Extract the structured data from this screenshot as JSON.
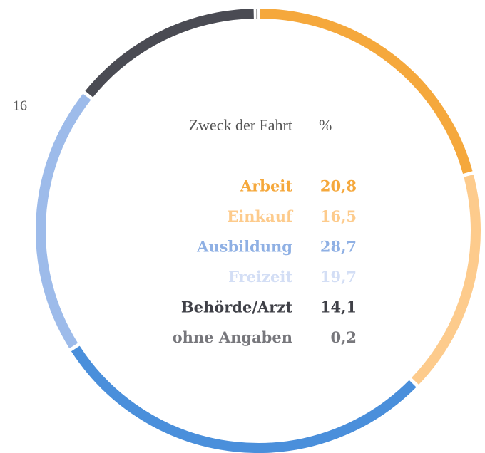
{
  "chart_data": {
    "type": "donut",
    "annotation": "16",
    "header": {
      "label": "Zweck der Fahrt",
      "unit": "%"
    },
    "categories": [
      "Arbeit",
      "Einkauf",
      "Ausbildung",
      "Freizeit",
      "Behörde/Arzt",
      "ohne Angaben"
    ],
    "values": [
      20.8,
      16.5,
      28.7,
      19.7,
      14.1,
      0.2
    ],
    "value_labels": [
      "20,8",
      "16,5",
      "28,7",
      "19,7",
      "14,1",
      "0,2"
    ],
    "colors": [
      "#f5a83c",
      "#fdcb8c",
      "#4a8fdb",
      "#9dbbea",
      "#4a4b53",
      "#a0a0a0"
    ],
    "text_colors": [
      "#f5a83c",
      "#fdcb8c",
      "#8fb0e4",
      "#d3def5",
      "#3f4047",
      "#77777c"
    ]
  }
}
